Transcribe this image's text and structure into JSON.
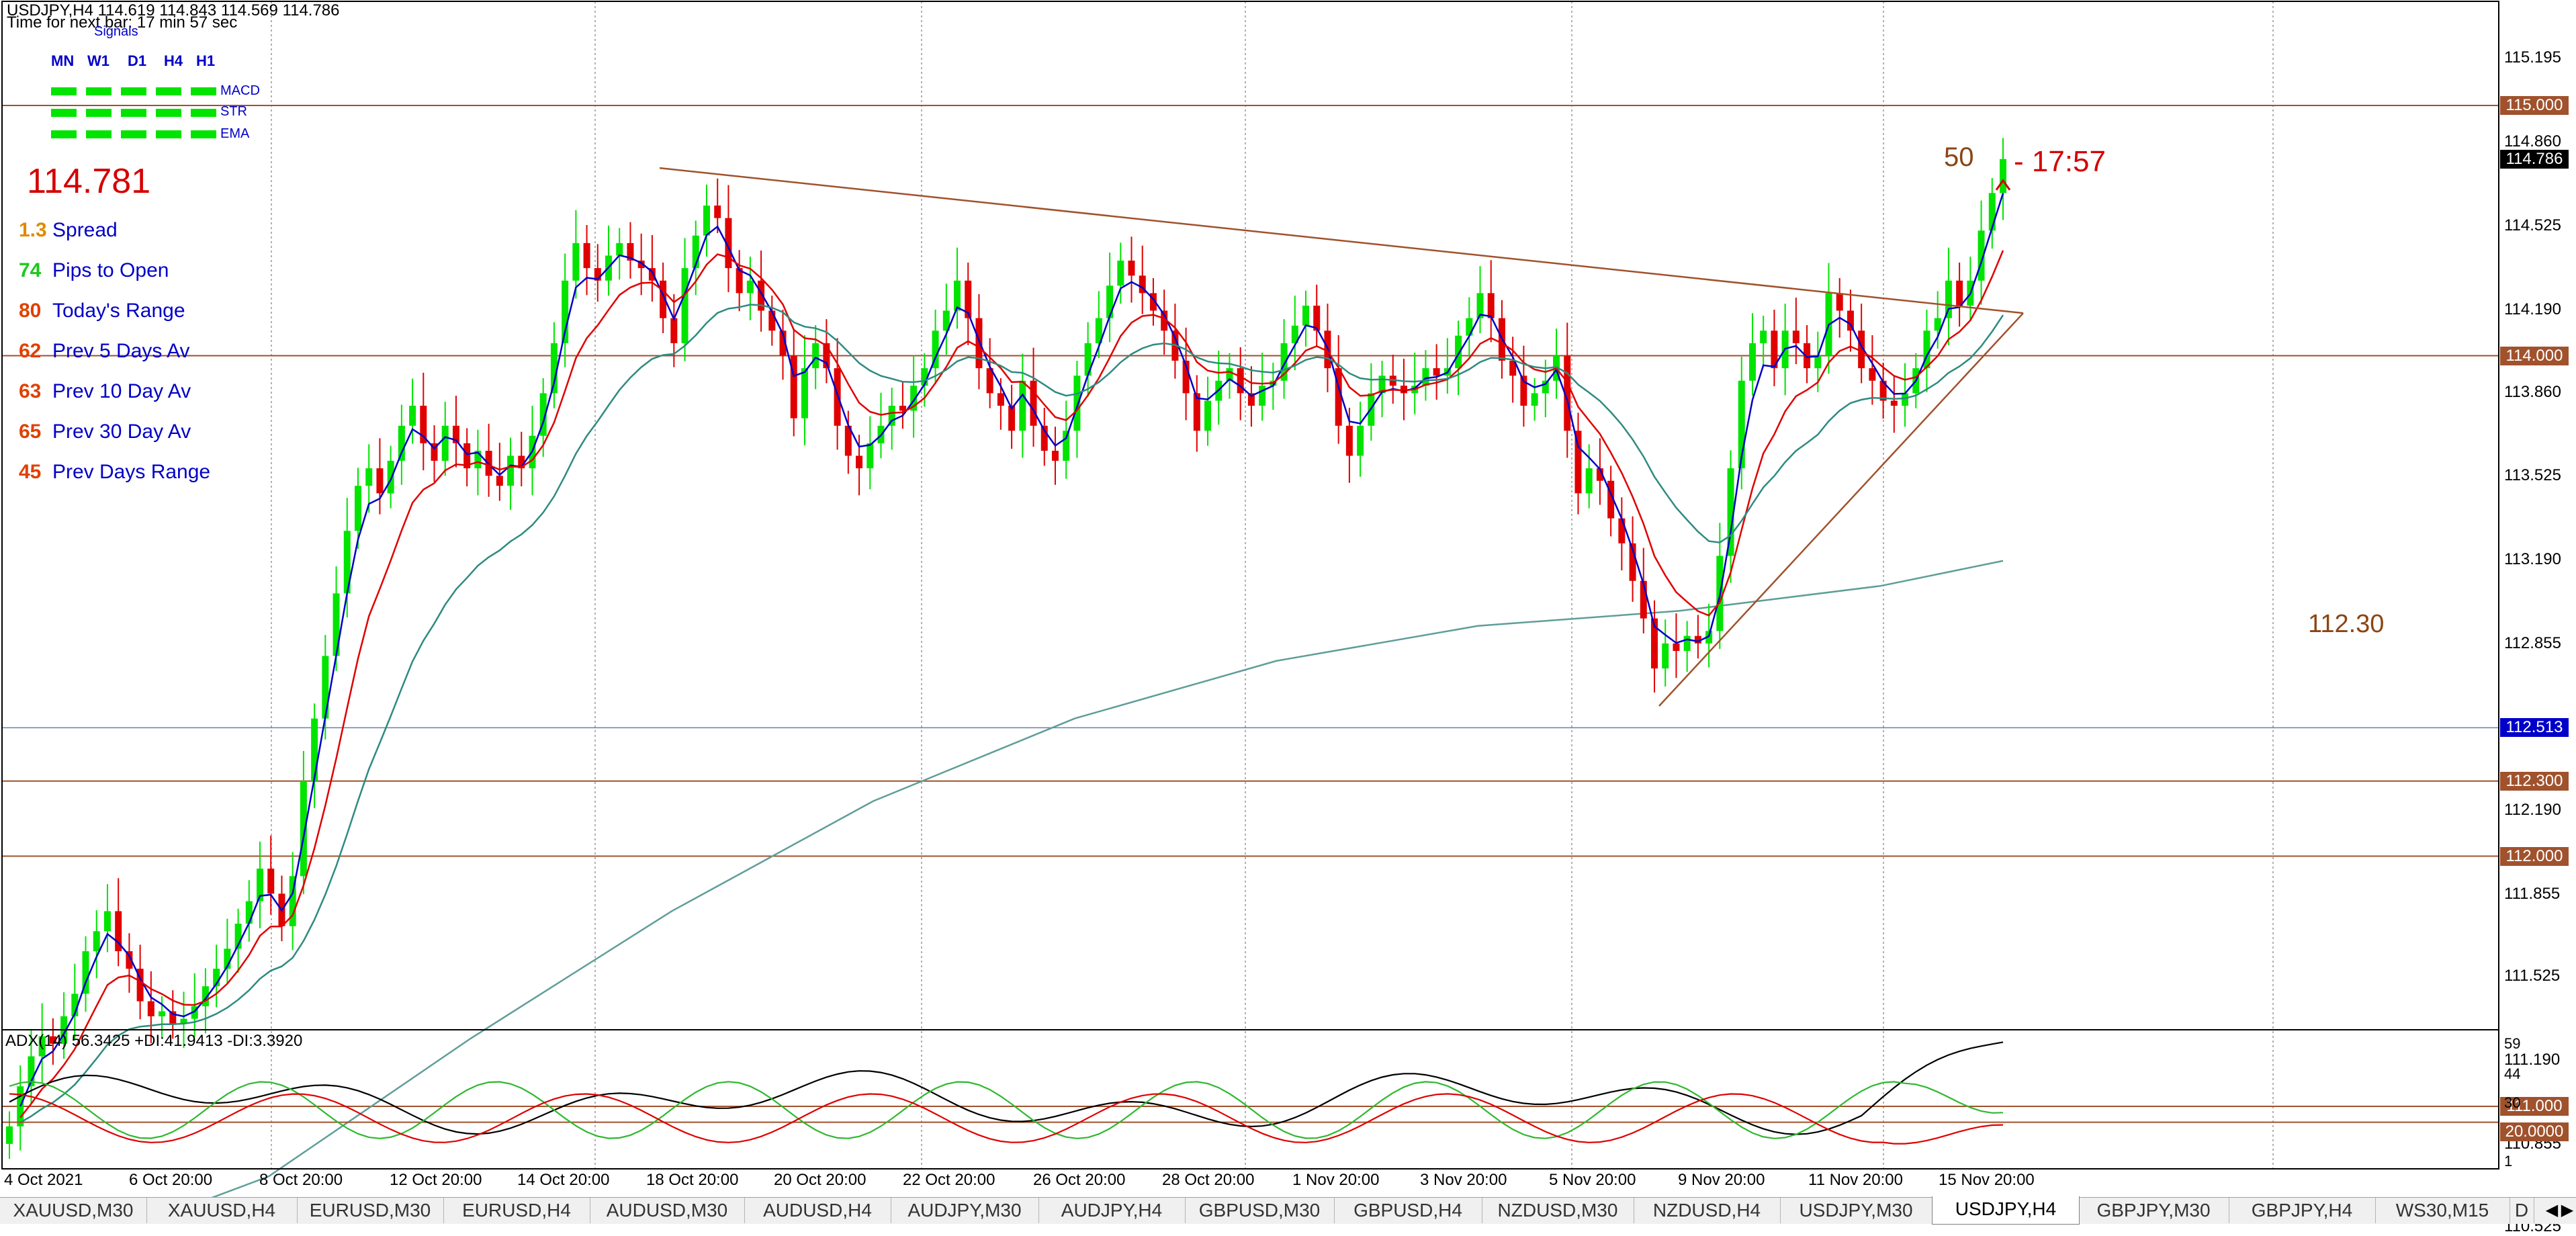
{
  "header": {
    "symbol_line": "USDJPY,H4  114.619 114.843 114.569 114.786",
    "time_line": "Time for next bar: 17 min 57 sec"
  },
  "signals": {
    "title": "Signals",
    "timeframes": [
      "MN",
      "W1",
      "D1",
      "H4",
      "H1"
    ],
    "indicators": [
      "MACD",
      "STR",
      "EMA"
    ],
    "color": "#00e400"
  },
  "info_panel": {
    "price": "114.781",
    "stats": [
      {
        "value": "1.3",
        "label": "Spread",
        "color": "#e08a00"
      },
      {
        "value": "74",
        "label": "Pips to Open",
        "color": "#1ec81e"
      },
      {
        "value": "80",
        "label": "Today's Range",
        "color": "#e04000"
      },
      {
        "value": "62",
        "label": "Prev 5 Days Av",
        "color": "#e04000"
      },
      {
        "value": "63",
        "label": "Prev 10 Day Av",
        "color": "#e04000"
      },
      {
        "value": "65",
        "label": "Prev 30 Day Av",
        "color": "#e04000"
      },
      {
        "value": "45",
        "label": "Prev Days Range",
        "color": "#e04000"
      }
    ]
  },
  "annotations": {
    "pips_counter": "50",
    "bar_timer": "- 17:57",
    "level_label": "112.30"
  },
  "price_axis": {
    "ticks": [
      "115.195",
      "114.860",
      "114.525",
      "114.190",
      "113.860",
      "113.525",
      "113.190",
      "112.855",
      "112.525",
      "112.190",
      "111.855",
      "111.525",
      "111.190",
      "110.855",
      "110.525"
    ]
  },
  "price_tags": [
    {
      "text": "115.000",
      "color": "#a0522d"
    },
    {
      "text": "114.786",
      "color": "#000000"
    },
    {
      "text": "114.000",
      "color": "#a0522d"
    },
    {
      "text": "112.513",
      "color": "#0000c8"
    },
    {
      "text": "112.300",
      "color": "#a0522d"
    },
    {
      "text": "112.000",
      "color": "#a0522d"
    },
    {
      "text": "111.000",
      "color": "#a0522d"
    }
  ],
  "indicator_panel": {
    "title": "ADX(14) 56.3425 +DI:41.9413 -DI:3.3920",
    "ticks": [
      "59",
      "44",
      "30",
      "15",
      "1"
    ],
    "level_tag": "20.0000"
  },
  "time_axis": {
    "labels": [
      "4 Oct 2021",
      "6 Oct 20:00",
      "8 Oct 20:00",
      "12 Oct 20:00",
      "14 Oct 20:00",
      "18 Oct 20:00",
      "20 Oct 20:00",
      "22 Oct 20:00",
      "26 Oct 20:00",
      "28 Oct 20:00",
      "1 Nov 20:00",
      "3 Nov 20:00",
      "5 Nov 20:00",
      "9 Nov 20:00",
      "11 Nov 20:00",
      "15 Nov 20:00"
    ]
  },
  "tabs": {
    "items": [
      "XAUUSD,M30",
      "XAUUSD,H4",
      "EURUSD,M30",
      "EURUSD,H4",
      "AUDUSD,M30",
      "AUDUSD,H4",
      "AUDJPY,M30",
      "AUDJPY,H4",
      "GBPUSD,M30",
      "GBPUSD,H4",
      "NZDUSD,M30",
      "NZDUSD,H4",
      "USDJPY,M30",
      "USDJPY,H4",
      "GBPJPY,M30",
      "GBPJPY,H4",
      "WS30,M15",
      "D"
    ],
    "active": "USDJPY,H4",
    "nav_prev": "◀",
    "nav_next": "▶"
  },
  "chart_data": {
    "type": "candlestick",
    "symbol": "USDJPY",
    "timeframe": "H4",
    "ylim": [
      110.35,
      115.35
    ],
    "bull_color": "#00e400",
    "bear_color": "#e00000",
    "horizontal_levels": [
      115.0,
      114.0,
      112.3,
      112.0,
      111.0
    ],
    "bid_line": 112.513,
    "current_price": 114.786,
    "candle_closes": [
      110.92,
      111.08,
      111.2,
      111.28,
      111.25,
      111.36,
      111.45,
      111.62,
      111.7,
      111.78,
      111.62,
      111.55,
      111.42,
      111.36,
      111.38,
      111.33,
      111.35,
      111.4,
      111.48,
      111.55,
      111.63,
      111.73,
      111.82,
      111.95,
      111.85,
      111.72,
      111.92,
      112.3,
      112.55,
      112.8,
      113.05,
      113.3,
      113.48,
      113.55,
      113.45,
      113.58,
      113.72,
      113.8,
      113.65,
      113.58,
      113.72,
      113.65,
      113.55,
      113.62,
      113.52,
      113.48,
      113.6,
      113.55,
      113.68,
      113.85,
      114.05,
      114.3,
      114.45,
      114.35,
      114.3,
      114.4,
      114.45,
      114.38,
      114.35,
      114.3,
      114.15,
      114.05,
      114.35,
      114.48,
      114.6,
      114.55,
      114.35,
      114.25,
      114.3,
      114.18,
      114.1,
      114.0,
      113.75,
      113.95,
      114.05,
      113.95,
      113.72,
      113.6,
      113.55,
      113.65,
      113.72,
      113.8,
      113.78,
      113.88,
      113.95,
      114.1,
      114.18,
      114.3,
      114.15,
      113.95,
      113.85,
      113.8,
      113.7,
      113.9,
      113.72,
      113.62,
      113.58,
      113.7,
      113.92,
      114.05,
      114.15,
      114.28,
      114.38,
      114.32,
      114.25,
      114.18,
      114.1,
      113.98,
      113.85,
      113.7,
      113.82,
      113.9,
      113.95,
      113.85,
      113.8,
      113.88,
      113.9,
      114.05,
      114.12,
      114.2,
      114.1,
      113.95,
      113.72,
      113.6,
      113.72,
      113.85,
      113.92,
      113.88,
      113.85,
      113.88,
      113.95,
      113.92,
      113.95,
      114.08,
      114.15,
      114.25,
      114.15,
      113.98,
      113.92,
      113.8,
      113.85,
      113.9,
      114.0,
      113.7,
      113.45,
      113.55,
      113.5,
      113.35,
      113.25,
      113.1,
      112.95,
      112.75,
      112.85,
      112.82,
      112.88,
      112.85,
      112.9,
      113.2,
      113.55,
      113.9,
      114.05,
      114.1,
      113.95,
      114.1,
      114.05,
      113.95,
      114.0,
      114.25,
      114.18,
      114.1,
      113.95,
      113.9,
      113.82,
      113.8,
      113.85,
      113.95,
      114.1,
      114.15,
      114.3,
      114.2,
      114.3,
      114.5,
      114.65,
      114.786
    ]
  }
}
